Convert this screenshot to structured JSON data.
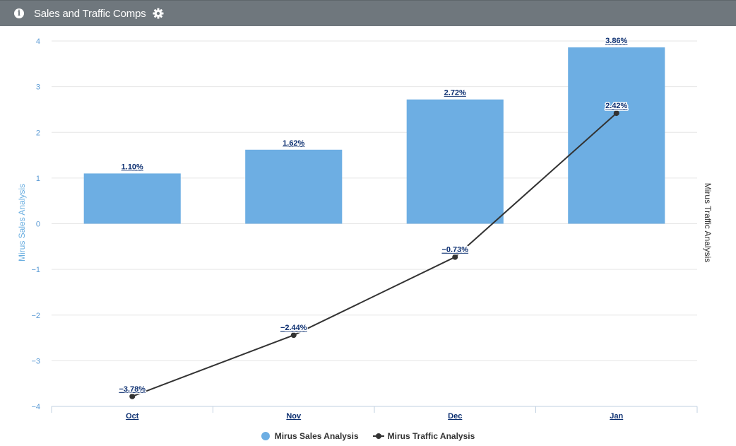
{
  "header": {
    "title": "Sales and Traffic Comps",
    "info_icon": "info-circle-icon",
    "settings_icon": "gear-icon"
  },
  "colors": {
    "header_bg": "#6f777d",
    "bar": "#6daee3",
    "line": "#333333",
    "label": "#0b2e70"
  },
  "chart_data": {
    "type": "bar+line",
    "categories": [
      "Oct",
      "Nov",
      "Dec",
      "Jan"
    ],
    "series": [
      {
        "name": "Mirus Sales Analysis",
        "type": "bar",
        "values": [
          1.1,
          1.62,
          2.72,
          3.86
        ],
        "labels": [
          "1.10%",
          "1.62%",
          "2.72%",
          "3.86%"
        ]
      },
      {
        "name": "Mirus Traffic Analysis",
        "type": "line",
        "values": [
          -3.78,
          -2.44,
          -0.73,
          2.42
        ],
        "labels": [
          "−3.78%",
          "−2.44%",
          "−0.73%",
          "2.42%"
        ]
      }
    ],
    "ylabel_left": "Mirus Sales Analysis",
    "ylabel_right": "Mirus Traffic Analysis",
    "ylim": [
      -4,
      4
    ],
    "yticks": [
      "4",
      "3",
      "2",
      "1",
      "0",
      "−1",
      "−2",
      "−3",
      "−4"
    ],
    "grid": true,
    "legend_position": "bottom-center"
  }
}
